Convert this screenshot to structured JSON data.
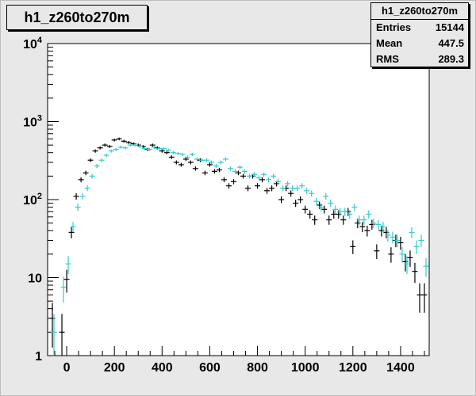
{
  "title": "h1_z260to270m",
  "stats": {
    "name": "h1_z260to270m",
    "rows": [
      {
        "label": "Entries",
        "value": "15144"
      },
      {
        "label": "Mean",
        "value": "447.5"
      },
      {
        "label": "RMS",
        "value": "289.3"
      }
    ]
  },
  "colors": {
    "series_black": "#000000",
    "series_cyan": "#33cccc",
    "background": "#e8e8e8",
    "plot_bg": "#ffffff"
  },
  "chart_data": {
    "type": "scatter",
    "title": "h1_z260to270m",
    "xlabel": "",
    "ylabel": "",
    "xlim": [
      -80,
      1520
    ],
    "ylim": [
      1,
      10000
    ],
    "yscale": "log",
    "grid": false,
    "x_ticks": [
      0,
      200,
      400,
      600,
      800,
      1000,
      1200,
      1400
    ],
    "x_tick_labels": [
      "0",
      "200",
      "400",
      "600",
      "800",
      "1000",
      "1200",
      "1400"
    ],
    "y_ticks": [
      1,
      10,
      100,
      1000,
      10000
    ],
    "y_tick_labels": [
      "1",
      "10",
      "10^2",
      "10^3",
      "10^4"
    ],
    "series": [
      {
        "color": "#000000",
        "x": [
          -60,
          -20,
          0,
          20,
          40,
          60,
          80,
          100,
          120,
          140,
          160,
          180,
          200,
          220,
          240,
          260,
          280,
          300,
          320,
          340,
          360,
          380,
          400,
          420,
          440,
          460,
          480,
          500,
          520,
          540,
          560,
          580,
          600,
          620,
          640,
          660,
          680,
          700,
          720,
          740,
          760,
          780,
          800,
          820,
          840,
          860,
          880,
          900,
          920,
          940,
          960,
          980,
          1000,
          1020,
          1040,
          1060,
          1080,
          1100,
          1120,
          1140,
          1160,
          1180,
          1200,
          1220,
          1240,
          1260,
          1280,
          1300,
          1320,
          1340,
          1360,
          1380,
          1400,
          1420,
          1440,
          1460,
          1480,
          1500
        ],
        "y": [
          3,
          2,
          9.5,
          38,
          110,
          180,
          220,
          320,
          420,
          460,
          500,
          480,
          580,
          600,
          560,
          540,
          520,
          500,
          480,
          440,
          500,
          460,
          420,
          400,
          350,
          300,
          280,
          330,
          300,
          250,
          320,
          220,
          280,
          230,
          240,
          180,
          150,
          170,
          220,
          200,
          140,
          200,
          150,
          180,
          130,
          140,
          160,
          100,
          140,
          120,
          90,
          100,
          75,
          65,
          55,
          85,
          75,
          55,
          65,
          65,
          55,
          70,
          25,
          50,
          45,
          40,
          48,
          22,
          40,
          38,
          20,
          30,
          28,
          16,
          18,
          12,
          6,
          6
        ]
      },
      {
        "color": "#33cccc",
        "x": [
          -60,
          -20,
          0,
          20,
          40,
          60,
          80,
          100,
          120,
          140,
          160,
          180,
          200,
          220,
          240,
          260,
          280,
          300,
          320,
          340,
          360,
          380,
          400,
          420,
          440,
          460,
          480,
          500,
          520,
          540,
          560,
          580,
          600,
          620,
          640,
          660,
          680,
          700,
          720,
          740,
          760,
          780,
          800,
          820,
          840,
          860,
          880,
          900,
          920,
          940,
          960,
          980,
          1000,
          1020,
          1040,
          1060,
          1080,
          1100,
          1120,
          1140,
          1160,
          1180,
          1200,
          1220,
          1240,
          1260,
          1280,
          1300,
          1320,
          1340,
          1360,
          1380,
          1400,
          1420,
          1440,
          1460,
          1480,
          1500
        ],
        "y": [
          2,
          7.5,
          15,
          45,
          80,
          110,
          140,
          200,
          270,
          320,
          370,
          420,
          440,
          470,
          460,
          500,
          500,
          480,
          450,
          440,
          470,
          450,
          450,
          430,
          400,
          390,
          380,
          350,
          380,
          330,
          320,
          320,
          300,
          270,
          300,
          330,
          250,
          230,
          260,
          230,
          200,
          210,
          190,
          210,
          180,
          200,
          170,
          140,
          160,
          140,
          140,
          150,
          130,
          120,
          95,
          80,
          110,
          90,
          75,
          70,
          70,
          65,
          80,
          55,
          55,
          65,
          50,
          48,
          45,
          35,
          33,
          30,
          20,
          15,
          38,
          25,
          30,
          14
        ]
      }
    ]
  }
}
